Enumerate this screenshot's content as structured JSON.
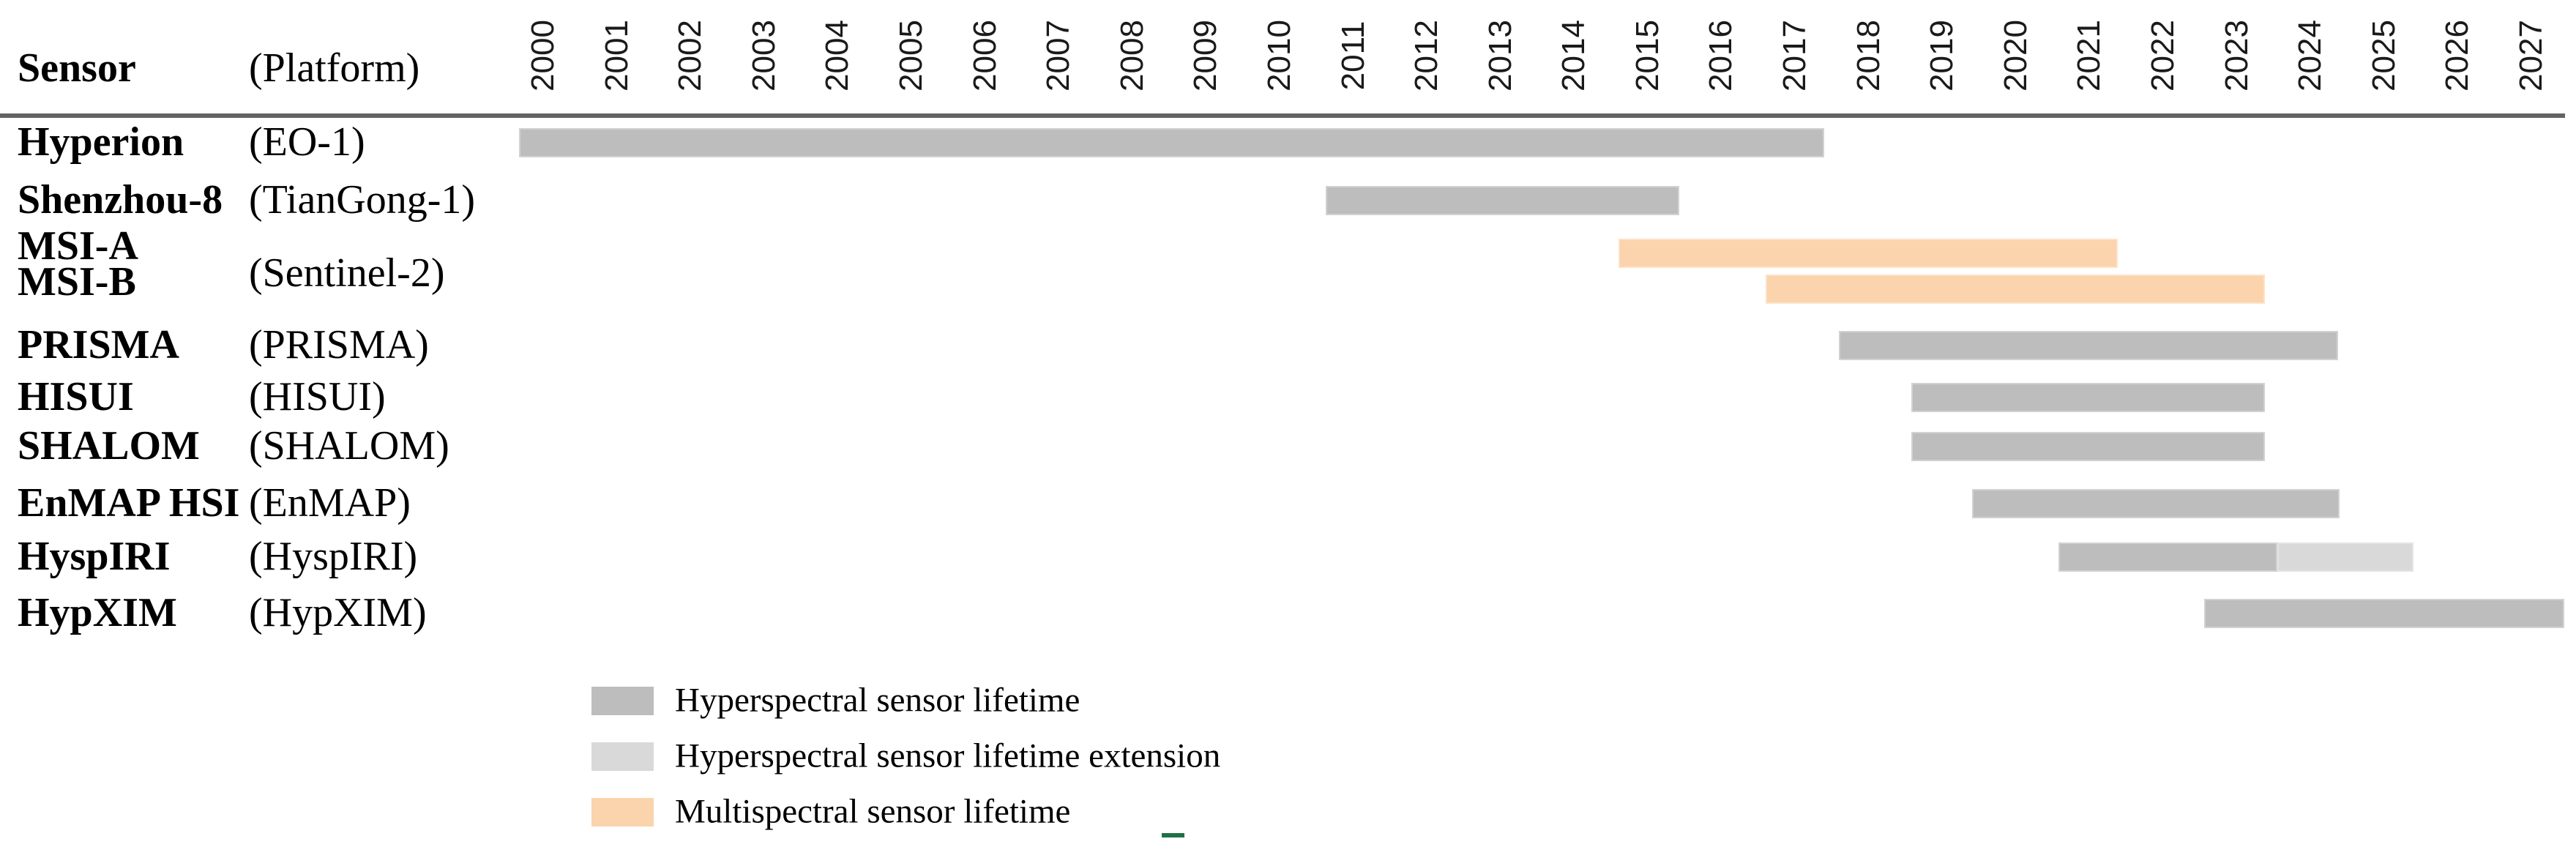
{
  "header": {
    "sensor_col": "Sensor",
    "platform_col": "(Platform)"
  },
  "colors": {
    "hyperspectral": "#bdbdbd",
    "extension": "#d9d9d9",
    "multispectral": "#fbd3ad",
    "separator_line": "#636363",
    "green_dash": "#1e7145",
    "text": "#000000"
  },
  "chart_data": {
    "type": "bar",
    "subtype": "gantt-timeline",
    "title": "",
    "xlabel": "",
    "ylabel": "",
    "axis": {
      "year_labels": [
        2000,
        2001,
        2002,
        2003,
        2004,
        2005,
        2006,
        2007,
        2008,
        2009,
        2010,
        2011,
        2012,
        2013,
        2014,
        2015,
        2016,
        2017,
        2018,
        2019,
        2020,
        2021,
        2022,
        2023,
        2024,
        2025,
        2026,
        2027
      ],
      "tick_orientation": "rotated-90",
      "xlim": [
        1999.5,
        2027.5
      ],
      "grid": false
    },
    "rows": [
      {
        "sensor": "Hyperion",
        "platform": "(EO-1)",
        "platform_render": "own",
        "segments": [
          {
            "kind": "hyperspectral",
            "years": "2000–2017",
            "draw_from": 1999.67,
            "draw_to": 2017.4
          }
        ]
      },
      {
        "sensor": "Shenzhou-8",
        "platform": "(TianGong-1)",
        "platform_render": "own",
        "segments": [
          {
            "kind": "hyperspectral",
            "years": "2011–2015",
            "draw_from": 2010.63,
            "draw_to": 2015.43
          }
        ]
      },
      {
        "sensor": "MSI-A",
        "platform": "(Sentinel-2)",
        "platform_render": "group-lead",
        "segments": [
          {
            "kind": "multispectral",
            "years": "2015–2021",
            "draw_from": 2014.6,
            "draw_to": 2021.38
          }
        ]
      },
      {
        "sensor": "MSI-B",
        "platform": "(Sentinel-2)",
        "platform_render": "skip",
        "segments": [
          {
            "kind": "multispectral",
            "years": "2017–2023",
            "draw_from": 2016.6,
            "draw_to": 2023.38
          }
        ]
      },
      {
        "sensor": "PRISMA",
        "platform": "(PRISMA)",
        "platform_render": "own",
        "segments": [
          {
            "kind": "hyperspectral",
            "years": "2018–2024",
            "draw_from": 2017.6,
            "draw_to": 2024.38
          }
        ]
      },
      {
        "sensor": "HISUI",
        "platform": "(HISUI)",
        "platform_render": "own",
        "segments": [
          {
            "kind": "hyperspectral",
            "years": "2019–2023",
            "draw_from": 2018.58,
            "draw_to": 2023.38
          }
        ]
      },
      {
        "sensor": "SHALOM",
        "platform": "(SHALOM)",
        "platform_render": "own",
        "segments": [
          {
            "kind": "hyperspectral",
            "years": "2019–2023",
            "draw_from": 2018.58,
            "draw_to": 2023.38
          }
        ]
      },
      {
        "sensor": "EnMAP HSI",
        "platform": "(EnMAP)",
        "platform_render": "own",
        "segments": [
          {
            "kind": "hyperspectral",
            "years": "2020–2024",
            "draw_from": 2019.4,
            "draw_to": 2024.4
          }
        ]
      },
      {
        "sensor": "HyspIRI",
        "platform": "(HyspIRI)",
        "platform_render": "own",
        "segments": [
          {
            "kind": "hyperspectral",
            "years": "2021–2023",
            "draw_from": 2020.58,
            "draw_to": 2023.55
          },
          {
            "kind": "extension",
            "years": "2024–2025",
            "draw_from": 2023.55,
            "draw_to": 2025.4
          }
        ]
      },
      {
        "sensor": "HypXIM",
        "platform": "(HypXIM)",
        "platform_render": "own",
        "segments": [
          {
            "kind": "hyperspectral",
            "years": "2023–2027",
            "draw_from": 2022.56,
            "draw_to": 2027.45
          }
        ]
      }
    ]
  },
  "legend": {
    "items": [
      {
        "kind": "hyperspectral",
        "label": "Hyperspectral sensor lifetime"
      },
      {
        "kind": "extension",
        "label": "Hyperspectral sensor lifetime extension"
      },
      {
        "kind": "multispectral",
        "label": "Multispectral sensor lifetime"
      }
    ]
  }
}
